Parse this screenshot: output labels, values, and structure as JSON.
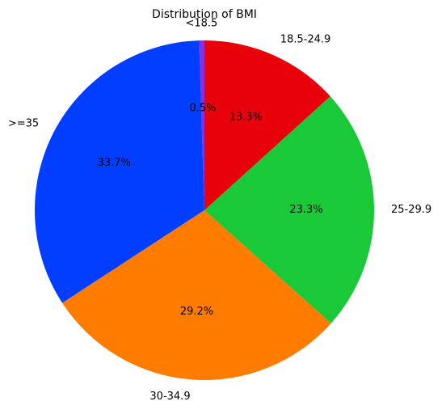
{
  "chart_data": {
    "type": "pie",
    "title": "Distribution of BMI",
    "start_angle_deg": 90,
    "direction": "counterclockwise",
    "slices": [
      {
        "label": "<18.5",
        "value": 0.5,
        "pct_label": "0.5%",
        "color": "#8b2be2"
      },
      {
        "label": ">=35",
        "value": 33.7,
        "pct_label": "33.7%",
        "color": "#023eff"
      },
      {
        "label": "30-34.9",
        "value": 29.2,
        "pct_label": "29.2%",
        "color": "#ff7c00"
      },
      {
        "label": "25-29.9",
        "value": 23.3,
        "pct_label": "23.3%",
        "color": "#1ac938"
      },
      {
        "label": "18.5-24.9",
        "value": 13.3,
        "pct_label": "13.3%",
        "color": "#e8000b"
      }
    ]
  }
}
